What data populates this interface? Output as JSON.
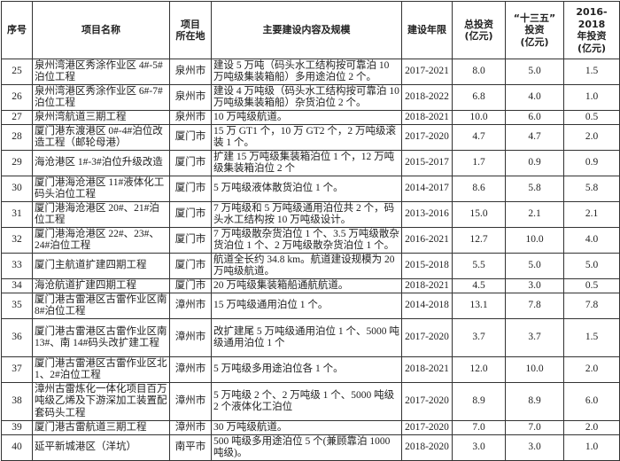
{
  "headers": [
    "序号",
    "项目名称",
    "项目所在地",
    "主要建设内容及规模",
    "建设年限",
    "总投资(亿元)",
    "“十三五”投资(亿元)",
    "2016-2018年投资(亿元)"
  ],
  "header_lines": {
    "location": [
      "项目",
      "所在地"
    ],
    "total": [
      "总投资",
      "(亿元)"
    ],
    "plan13": [
      "“十三五”",
      "投资",
      "(亿元)"
    ],
    "y2016": [
      "2016-2018",
      "年投资",
      "(亿元)"
    ]
  },
  "rows": [
    {
      "no": "25",
      "name": "泉州湾港区秀涂作业区 4#-5#泊位工程",
      "loc": "泉州市",
      "content": "建设 5 万吨（码头水工结构按可靠泊 10 万吨级集装箱船）多用途泊位 2 个。",
      "years": "2017-2021",
      "total": "8.0",
      "plan13": "5.0",
      "y2016": "1.5",
      "lines": 2
    },
    {
      "no": "26",
      "name": "泉州湾港区秀涂作业区 6#-7#泊位工程",
      "loc": "泉州市",
      "content": "建设 4 万吨级（码头水工结构按可靠泊 10 万吨级集装箱船）杂货泊位 2 个。",
      "years": "2018-2022",
      "total": "6.8",
      "plan13": "4.0",
      "y2016": "1.0",
      "lines": 2
    },
    {
      "no": "27",
      "name": "泉州湾航道三期工程",
      "loc": "泉州市",
      "content": "10 万吨级航道。",
      "years": "2018-2021",
      "total": "10.0",
      "plan13": "6.0",
      "y2016": "0.5",
      "lines": 1
    },
    {
      "no": "28",
      "name": "厦门港东渡港区 0#-4#泊位改造工程（邮轮母港）",
      "loc": "厦门市",
      "content": "15 万 GT1 个，10 万 GT2 个，2 万吨级滚装 1 个。",
      "years": "2017-2020",
      "total": "4.7",
      "plan13": "4.7",
      "y2016": "2.0",
      "lines": 2
    },
    {
      "no": "29",
      "name": "海沧港区 1#-3#泊位升级改造",
      "loc": "厦门市",
      "content": "扩建 15 万吨级集装箱泊位 1 个，12 万吨级集装箱泊位 2 个",
      "years": "2015-2017",
      "total": "1.7",
      "plan13": "0.9",
      "y2016": "0.9",
      "lines": 2
    },
    {
      "no": "30",
      "name": "厦门港海沧港区 11#液体化工码头泊位工程",
      "loc": "厦门市",
      "content": "5 万吨级液体散货泊位 1 个。",
      "years": "2014-2017",
      "total": "8.6",
      "plan13": "5.8",
      "y2016": "5.8",
      "lines": 2
    },
    {
      "no": "31",
      "name": "厦门港海沧港区 20#、21#泊位工程",
      "loc": "厦门市",
      "content": "7 万吨级和 5 万吨级通用泊位共 2 个，码头水工结构按 10 万吨级设计。",
      "years": "2013-2016",
      "total": "15.0",
      "plan13": "2.1",
      "y2016": "2.1",
      "lines": 2
    },
    {
      "no": "32",
      "name": "厦门港海沧港区 22#、23#、24#泊位工程",
      "loc": "厦门市",
      "content": "7 万吨级散杂货泊位 1 个、3.5 万吨级散杂货泊位 1 个、2 万吨级散杂货泊位 1 个。",
      "years": "2016-2021",
      "total": "12.7",
      "plan13": "10.0",
      "y2016": "4.0",
      "lines": 2
    },
    {
      "no": "33",
      "name": "厦门主航道扩建四期工程",
      "loc": "厦门市",
      "content": "航道全长约 34.8 km。航道建设规模为 20 万吨级航道。",
      "years": "2015-2018",
      "total": "5.5",
      "plan13": "5.0",
      "y2016": "5.0",
      "lines": 2
    },
    {
      "no": "34",
      "name": "海沧航道扩建四期工程",
      "loc": "厦门市",
      "content": "20 万吨级集装箱船通航航道。",
      "years": "2018-2021",
      "total": "4.5",
      "plan13": "3.0",
      "y2016": "0.5",
      "lines": 1
    },
    {
      "no": "35",
      "name": "厦门港古雷港区古雷作业区南 8#泊位工程",
      "loc": "漳州市",
      "content": "15 万吨级通用泊位 1 个。",
      "years": "2014-2018",
      "total": "13.1",
      "plan13": "7.8",
      "y2016": "7.8",
      "lines": 2
    },
    {
      "no": "36",
      "name": "厦门港古雷港区古雷作业区南 13#、南 14#码头改扩建工程",
      "loc": "漳州市",
      "content": "改扩建尾 5 万吨级通用泊位 1 个、5000 吨级通用泊位 1 个",
      "years": "2017-2020",
      "total": "3.7",
      "plan13": "3.7",
      "y2016": "1.5",
      "lines": 3
    },
    {
      "no": "37",
      "name": "厦门港古雷港区古雷作业区北 1、2#泊位工程",
      "loc": "漳州市",
      "content": "5 万吨级多用途泊位各 1 个。",
      "years": "2018-2021",
      "total": "12.0",
      "plan13": "10.0",
      "y2016": "2.0",
      "lines": 2
    },
    {
      "no": "38",
      "name": "漳州古雷炼化一体化项目百万吨级乙烯及下游深加工装置配套码头工程",
      "loc": "漳州市",
      "content": "5 万吨级 2 个、2 万吨级 1 个、5000 吨级 2 个液体化工泊位",
      "years": "2017-2020",
      "total": "8.9",
      "plan13": "8.9",
      "y2016": "6.0",
      "lines": 3
    },
    {
      "no": "39",
      "name": "厦门港古雷航道三期工程",
      "loc": "漳州市",
      "content": "30 万吨级航道。",
      "years": "2017-2020",
      "total": "7.0",
      "plan13": "7.0",
      "y2016": "2.0",
      "lines": 1
    },
    {
      "no": "40",
      "name": "延平新城港区（洋坑）",
      "loc": "南平市",
      "content": "500 吨级多用途泊位 5 个(兼顾靠泊 1000 吨级)。",
      "years": "2018-2020",
      "total": "3.0",
      "plan13": "3.0",
      "y2016": "1.0",
      "lines": 2
    }
  ]
}
